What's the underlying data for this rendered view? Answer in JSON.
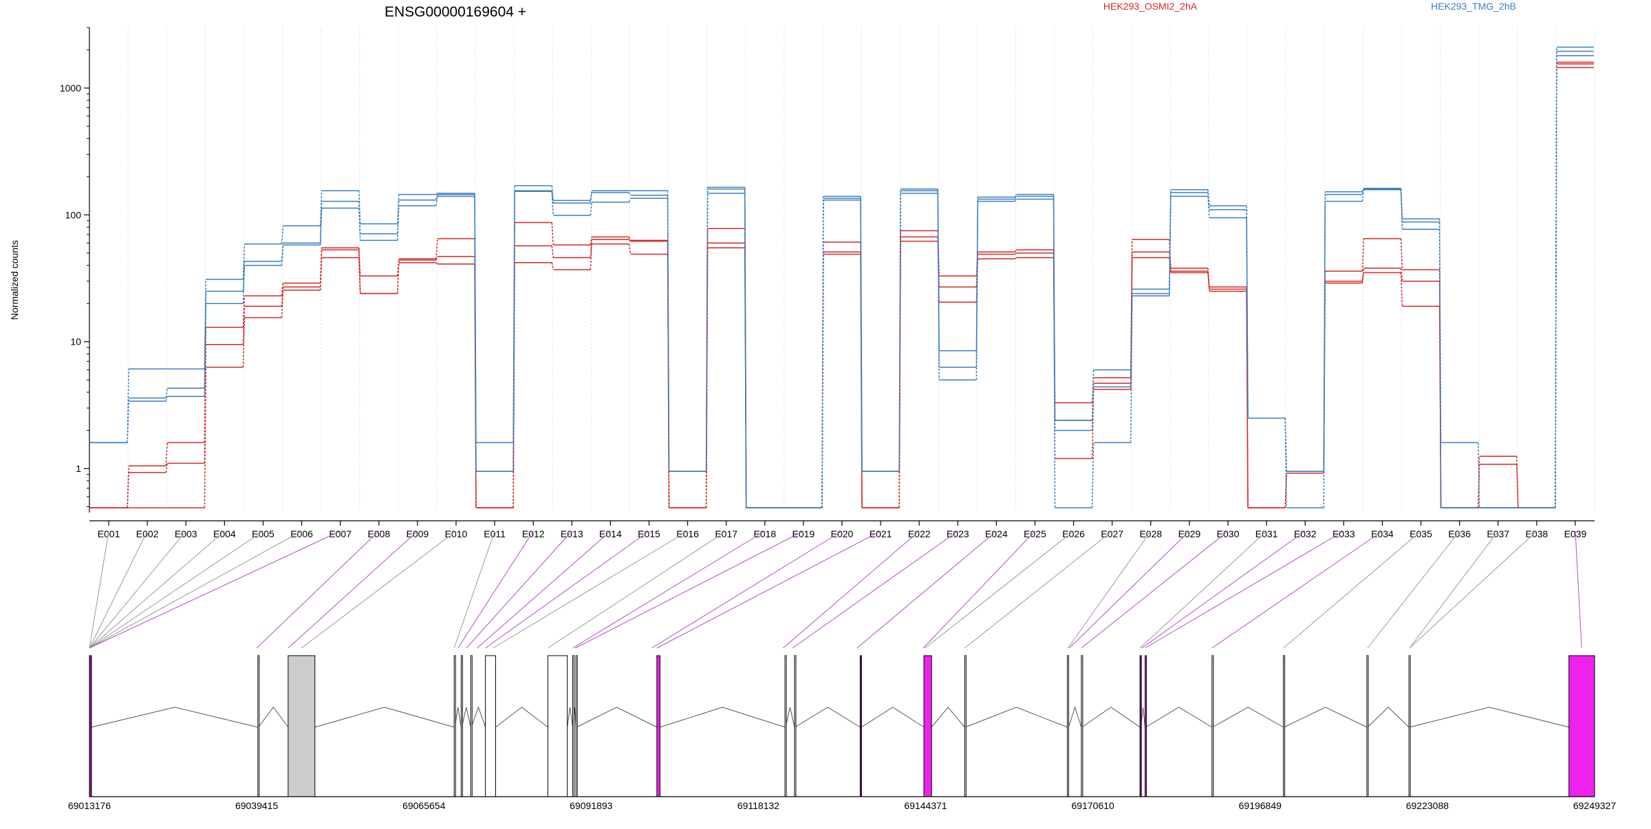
{
  "chart_data": {
    "type": "line",
    "title": "ENSG00000169604 +",
    "ylabel": "Normalized counts",
    "xlabel": "",
    "yscale": "log",
    "ylim": [
      0.45,
      3000
    ],
    "yticks": [
      1,
      10,
      100,
      1000
    ],
    "ytick_labels": [
      "1",
      "10",
      "100",
      "1000"
    ],
    "grid": "vertical dotted at exon boundaries",
    "legend_placement": "top",
    "categories": [
      "E001",
      "E002",
      "E003",
      "E004",
      "E005",
      "E006",
      "E007",
      "E008",
      "E009",
      "E010",
      "E011",
      "E012",
      "E013",
      "E014",
      "E015",
      "E016",
      "E017",
      "E018",
      "E019",
      "E020",
      "E021",
      "E022",
      "E023",
      "E024",
      "E025",
      "E026",
      "E027",
      "E028",
      "E029",
      "E030",
      "E031",
      "E032",
      "E033",
      "E034",
      "E035",
      "E036",
      "E037",
      "E038",
      "E039"
    ],
    "groups": [
      {
        "name": "HEK293_OSMI2_2hA",
        "color": "#d62728"
      },
      {
        "name": "HEK293_TMG_2hB",
        "color": "#3b7fc0"
      }
    ],
    "series": [
      {
        "group": "HEK293_OSMI2_2hA",
        "values": [
          0.49,
          1.05,
          1.6,
          13,
          23,
          29,
          55,
          33,
          45,
          65,
          0.49,
          87,
          58,
          67,
          63,
          0.49,
          78,
          0.49,
          0.49,
          61,
          0.49,
          75,
          33,
          51,
          53,
          3.3,
          5.2,
          64,
          38,
          27,
          0.49,
          0.92,
          36,
          65,
          37,
          0.49,
          1.25,
          0.49,
          1600
        ]
      },
      {
        "group": "HEK293_OSMI2_2hA",
        "values": [
          0.49,
          0.93,
          1.1,
          9.5,
          19,
          27,
          53,
          24,
          44,
          47,
          0.49,
          57,
          46,
          64,
          62,
          0.49,
          60,
          0.49,
          0.49,
          51,
          0.49,
          67,
          27,
          49,
          50,
          2.4,
          4.7,
          51,
          36,
          26,
          0.49,
          0.92,
          30,
          38,
          30,
          0.49,
          1.08,
          0.49,
          1550
        ]
      },
      {
        "group": "HEK293_OSMI2_2hA",
        "values": [
          0.49,
          0.49,
          0.49,
          6.3,
          15.5,
          25.5,
          46,
          24,
          42,
          41,
          0.49,
          42,
          37,
          59,
          49,
          0.49,
          55,
          0.49,
          0.49,
          49,
          0.49,
          62,
          20.5,
          45,
          46,
          1.2,
          4.2,
          46,
          35,
          25,
          0.49,
          0.92,
          29,
          35,
          19,
          0.49,
          0.49,
          0.49,
          1450
        ]
      },
      {
        "group": "HEK293_TMG_2hB",
        "values": [
          1.6,
          6.1,
          6.1,
          31,
          59,
          82,
          155,
          85,
          145,
          148,
          1.6,
          170,
          130,
          155,
          155,
          0.95,
          165,
          0.49,
          0.49,
          140,
          0.95,
          160,
          8.5,
          138,
          145,
          2.4,
          6.0,
          26,
          158,
          118,
          2.5,
          0.95,
          152,
          162,
          93,
          1.6,
          0.49,
          0.49,
          2100
        ]
      },
      {
        "group": "HEK293_TMG_2hB",
        "values": [
          1.6,
          3.6,
          4.3,
          25,
          43,
          60,
          128,
          71,
          131,
          145,
          0.95,
          155,
          124,
          150,
          143,
          0.95,
          160,
          0.49,
          0.49,
          135,
          0.95,
          155,
          6.3,
          133,
          140,
          2.0,
          4.4,
          24,
          150,
          110,
          2.5,
          0.95,
          145,
          160,
          88,
          0.49,
          0.49,
          0.49,
          1950
        ]
      },
      {
        "group": "HEK293_TMG_2hB",
        "values": [
          1.6,
          3.4,
          3.7,
          20,
          40,
          58,
          113,
          63,
          118,
          140,
          0.95,
          153,
          99,
          126,
          135,
          0.95,
          148,
          0.49,
          0.49,
          131,
          0.95,
          148,
          5.0,
          128,
          133,
          0.49,
          1.6,
          23,
          140,
          95,
          2.5,
          0.49,
          128,
          158,
          77,
          0.49,
          0.49,
          0.49,
          1800
        ]
      }
    ],
    "gene_model": {
      "coord_ticks": [
        "69013176",
        "69039415",
        "69065654",
        "69091893",
        "69118132",
        "69144371",
        "69170610",
        "69196849",
        "69223088",
        "69249327"
      ],
      "coord_start": 69013176,
      "coord_end": 69249327,
      "exons": [
        {
          "id": "E001",
          "start": 69013176,
          "end": 69013500,
          "color": "#8b1a8b"
        },
        {
          "id": "E002",
          "start": 69039600,
          "end": 69039700,
          "color": "#ffffff"
        },
        {
          "id": "E003",
          "start": 69044350,
          "end": 69048550,
          "color": "#cccccc"
        },
        {
          "id": "E004",
          "start": 69070400,
          "end": 69070500,
          "color": "#ffffff"
        },
        {
          "id": "E005",
          "start": 69071500,
          "end": 69071600,
          "color": "#ffffff"
        },
        {
          "id": "E006",
          "start": 69073000,
          "end": 69073100,
          "color": "#ffffff"
        },
        {
          "id": "E007",
          "start": 69075300,
          "end": 69076900,
          "color": "#ffffff"
        },
        {
          "id": "E008",
          "start": 69085100,
          "end": 69088150,
          "color": "#ffffff"
        },
        {
          "id": "E009",
          "start": 69089000,
          "end": 69089100,
          "color": "#ffffff"
        },
        {
          "id": "E010",
          "start": 69089500,
          "end": 69089600,
          "color": "#ffffff"
        },
        {
          "id": "E011",
          "start": 69102200,
          "end": 69102700,
          "color": "#ee22ee"
        },
        {
          "id": "E012",
          "start": 69122300,
          "end": 69122400,
          "color": "#ffffff"
        },
        {
          "id": "E013",
          "start": 69123800,
          "end": 69123900,
          "color": "#ffffff"
        },
        {
          "id": "E014",
          "start": 69134100,
          "end": 69134300,
          "color": "#8b1a8b"
        },
        {
          "id": "E015",
          "start": 69144100,
          "end": 69145300,
          "color": "#ee22ee"
        },
        {
          "id": "E016",
          "start": 69150500,
          "end": 69150600,
          "color": "#ffffff"
        },
        {
          "id": "E017",
          "start": 69166600,
          "end": 69166800,
          "color": "#ffffff"
        },
        {
          "id": "E018",
          "start": 69168800,
          "end": 69168900,
          "color": "#ffffff"
        },
        {
          "id": "E019",
          "start": 69178000,
          "end": 69178150,
          "color": "#8b1a8b"
        },
        {
          "id": "E020",
          "start": 69178800,
          "end": 69178900,
          "color": "#ee22ee"
        },
        {
          "id": "E021",
          "start": 69189300,
          "end": 69189400,
          "color": "#ffffff"
        },
        {
          "id": "E022",
          "start": 69200500,
          "end": 69200600,
          "color": "#ffffff"
        },
        {
          "id": "E023",
          "start": 69213600,
          "end": 69213700,
          "color": "#ffffff"
        },
        {
          "id": "E024",
          "start": 69220200,
          "end": 69220300,
          "color": "#ffffff"
        },
        {
          "id": "E025",
          "start": 69245300,
          "end": 69249327,
          "color": "#ee22ee"
        }
      ],
      "links": [
        {
          "exon": "E001",
          "gene_x": 69013176,
          "color": "gray"
        },
        {
          "exon": "E002",
          "gene_x": 69013176,
          "color": "gray"
        },
        {
          "exon": "E003",
          "gene_x": 69013176,
          "color": "gray"
        },
        {
          "exon": "E004",
          "gene_x": 69013176,
          "color": "gray"
        },
        {
          "exon": "E005",
          "gene_x": 69013176,
          "color": "gray"
        },
        {
          "exon": "E006",
          "gene_x": 69013176,
          "color": "gray"
        },
        {
          "exon": "E007",
          "gene_x": 69013176,
          "color": "purple"
        },
        {
          "exon": "E008",
          "gene_x": 69039415,
          "color": "purple"
        },
        {
          "exon": "E009",
          "gene_x": 69044350,
          "color": "purple"
        },
        {
          "exon": "E010",
          "gene_x": 69046450,
          "color": "gray"
        },
        {
          "exon": "E011",
          "gene_x": 69070400,
          "color": "gray"
        },
        {
          "exon": "E012",
          "gene_x": 69071000,
          "color": "purple"
        },
        {
          "exon": "E013",
          "gene_x": 69072300,
          "color": "purple"
        },
        {
          "exon": "E014",
          "gene_x": 69074000,
          "color": "purple"
        },
        {
          "exon": "E015",
          "gene_x": 69075300,
          "color": "purple"
        },
        {
          "exon": "E016",
          "gene_x": 69076500,
          "color": "gray"
        },
        {
          "exon": "E017",
          "gene_x": 69085100,
          "color": "gray"
        },
        {
          "exon": "E018",
          "gene_x": 69089000,
          "color": "purple"
        },
        {
          "exon": "E019",
          "gene_x": 69089400,
          "color": "purple"
        },
        {
          "exon": "E020",
          "gene_x": 69101400,
          "color": "purple"
        },
        {
          "exon": "E021",
          "gene_x": 69102200,
          "color": "purple"
        },
        {
          "exon": "E022",
          "gene_x": 69122000,
          "color": "purple"
        },
        {
          "exon": "E023",
          "gene_x": 69123500,
          "color": "purple"
        },
        {
          "exon": "E024",
          "gene_x": 69133600,
          "color": "purple"
        },
        {
          "exon": "E025",
          "gene_x": 69144000,
          "color": "purple"
        },
        {
          "exon": "E026",
          "gene_x": 69144300,
          "color": "gray"
        },
        {
          "exon": "E027",
          "gene_x": 69150500,
          "color": "gray"
        },
        {
          "exon": "E028",
          "gene_x": 69166700,
          "color": "gray"
        },
        {
          "exon": "E029",
          "gene_x": 69166900,
          "color": "purple"
        },
        {
          "exon": "E030",
          "gene_x": 69168800,
          "color": "purple"
        },
        {
          "exon": "E031",
          "gene_x": 69178000,
          "color": "gray"
        },
        {
          "exon": "E032",
          "gene_x": 69178300,
          "color": "purple"
        },
        {
          "exon": "E033",
          "gene_x": 69178800,
          "color": "purple"
        },
        {
          "exon": "E034",
          "gene_x": 69189300,
          "color": "purple"
        },
        {
          "exon": "E035",
          "gene_x": 69200500,
          "color": "gray"
        },
        {
          "exon": "E036",
          "gene_x": 69213700,
          "color": "gray"
        },
        {
          "exon": "E037",
          "gene_x": 69220300,
          "color": "gray"
        },
        {
          "exon": "E038",
          "gene_x": 69220300,
          "color": "gray"
        },
        {
          "exon": "E039",
          "gene_x": 69247300,
          "color": "purple"
        }
      ]
    }
  }
}
